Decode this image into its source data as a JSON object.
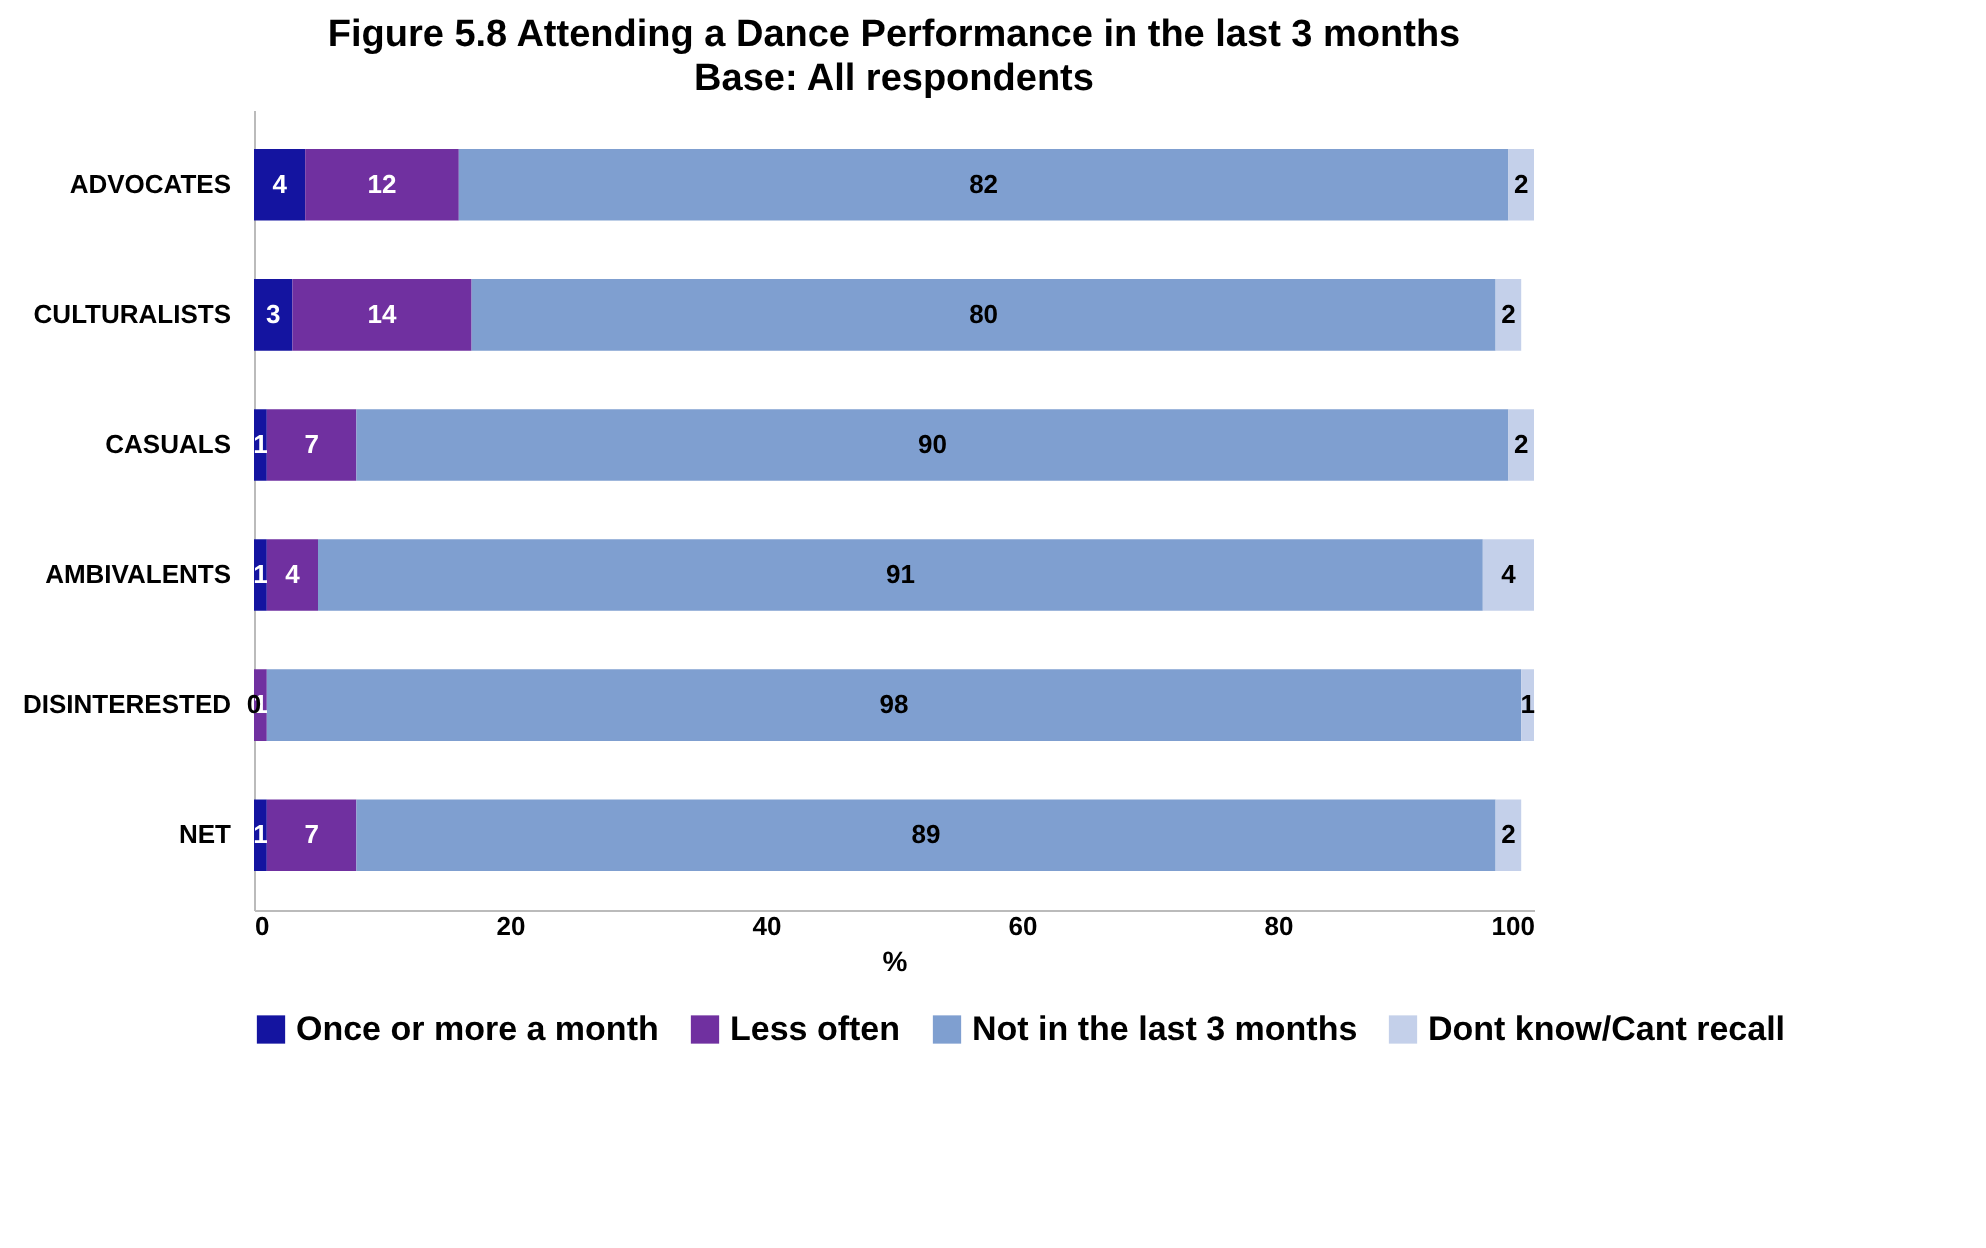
{
  "chart_data": {
    "type": "bar",
    "orientation": "horizontal",
    "stacked": true,
    "title": "Figure 5.8  Attending a Dance Performance in the last 3 months",
    "subtitle": "Base: All respondents",
    "xlabel": "%",
    "categories": [
      "ADVOCATES",
      "CULTURALISTS",
      "CASUALS",
      "AMBIVALENTS",
      "DISINTERESTED",
      "NET"
    ],
    "series": [
      {
        "name": "Once or more a month",
        "color": "#1414a0",
        "values": [
          4,
          3,
          1,
          1,
          0,
          1
        ],
        "value_labels": [
          "4",
          "3",
          "1",
          "1",
          null,
          "1"
        ]
      },
      {
        "name": "Less often",
        "color": "#7030a0",
        "values": [
          12,
          14,
          7,
          4,
          1,
          7
        ],
        "value_labels": [
          "12",
          "14",
          "7",
          "4",
          "1",
          "7"
        ]
      },
      {
        "name": "Not in the last 3 months",
        "color": "#7f9fd0",
        "values": [
          82,
          80,
          90,
          91,
          98,
          89
        ],
        "value_labels": [
          "82",
          "80",
          "90",
          "91",
          "98",
          "89"
        ]
      },
      {
        "name": "Dont know/Cant recall",
        "color": "#c4d0ea",
        "values": [
          2,
          2,
          2,
          4,
          1,
          2
        ],
        "value_labels": [
          "2",
          "2",
          "2",
          "4",
          "1",
          "2"
        ]
      }
    ],
    "annotations": [
      {
        "text": "0",
        "x": 0,
        "y": "DISINTERESTED"
      }
    ],
    "xlim": [
      0,
      100
    ],
    "xticks": [
      0,
      20,
      40,
      60,
      80,
      100
    ],
    "grid": false,
    "legend": "bottom"
  }
}
